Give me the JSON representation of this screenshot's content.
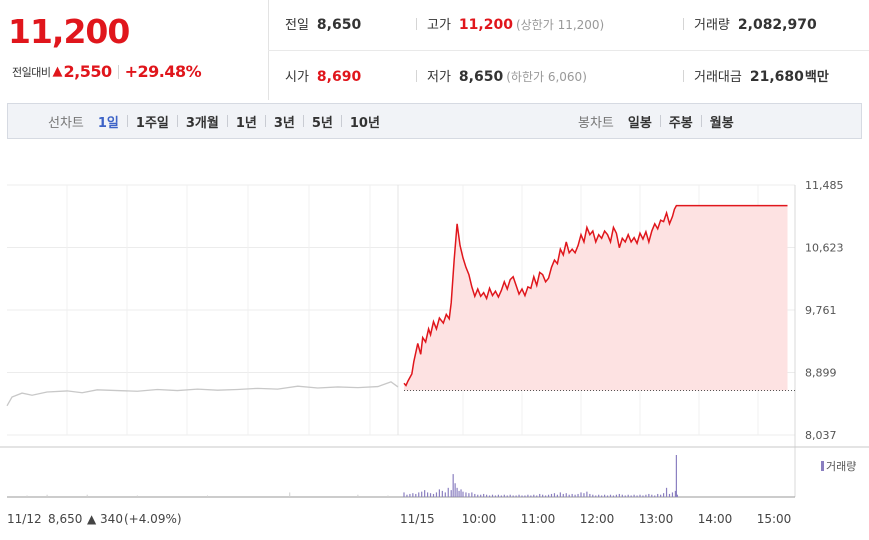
{
  "header": {
    "price": "11,200",
    "change_label": "전일대비",
    "change_value": "2,550",
    "change_pct": "+29.48%",
    "stats": {
      "prev_close": {
        "label": "전일",
        "value": "8,650"
      },
      "open": {
        "label": "시가",
        "value": "8,690"
      },
      "high": {
        "label": "고가",
        "value": "11,200",
        "extra": "(상한가 11,200)"
      },
      "low": {
        "label": "저가",
        "value": "8,650",
        "extra": "(하한가 6,060)"
      },
      "volume": {
        "label": "거래량",
        "value": "2,082,970"
      },
      "amount": {
        "label": "거래대금",
        "value": "21,680",
        "unit": "백만"
      }
    }
  },
  "tabs": {
    "line_label": "선차트",
    "line_periods": [
      "1일",
      "1주일",
      "3개월",
      "1년",
      "3년",
      "5년",
      "10년"
    ],
    "candle_label": "봉차트",
    "candle_periods": [
      "일봉",
      "주봉",
      "월봉"
    ],
    "active": "1일"
  },
  "colors": {
    "up": "#e0161c",
    "down": "#2a57c4",
    "active_tab": "#3d63c7",
    "volume": "#8a7fc0",
    "prev_line": "#c8c8c8",
    "fill": "#fde2e2"
  },
  "chart_data": {
    "type": "line",
    "ylim": [
      8037,
      11485
    ],
    "y_ticks": [
      "11,485",
      "10,623",
      "9,761",
      "8,899",
      "8,037"
    ],
    "x_ticks": [
      "11/15",
      "10:00",
      "11:00",
      "12:00",
      "13:00",
      "14:00",
      "15:00"
    ],
    "prev_day": {
      "date": "11/12",
      "close": "8,650",
      "change": "340",
      "change_pct": "(+4.09%)"
    },
    "reference_price": 8650,
    "volume_legend": "거래량",
    "series": [
      {
        "values": [
          [
            0,
            8440
          ],
          [
            5,
            8560
          ],
          [
            15,
            8615
          ],
          [
            25,
            8585
          ],
          [
            40,
            8630
          ],
          [
            60,
            8645
          ],
          [
            75,
            8620
          ],
          [
            90,
            8660
          ],
          [
            110,
            8650
          ],
          [
            130,
            8640
          ],
          [
            150,
            8665
          ],
          [
            170,
            8650
          ],
          [
            190,
            8670
          ],
          [
            210,
            8655
          ],
          [
            230,
            8665
          ],
          [
            250,
            8680
          ],
          [
            270,
            8670
          ],
          [
            290,
            8710
          ],
          [
            310,
            8685
          ],
          [
            330,
            8700
          ],
          [
            350,
            8690
          ],
          [
            370,
            8705
          ],
          [
            383,
            8770
          ],
          [
            390,
            8700
          ]
        ]
      },
      {
        "values": [
          [
            "09:00",
            8750
          ],
          [
            "09:02",
            8720
          ],
          [
            "09:04",
            8780
          ],
          [
            "09:08",
            8880
          ],
          [
            "09:10",
            9050
          ],
          [
            "09:14",
            9300
          ],
          [
            "09:17",
            9150
          ],
          [
            "09:19",
            9380
          ],
          [
            "09:22",
            9320
          ],
          [
            "09:25",
            9500
          ],
          [
            "09:27",
            9420
          ],
          [
            "09:30",
            9600
          ],
          [
            "09:33",
            9500
          ],
          [
            "09:36",
            9650
          ],
          [
            "09:40",
            9580
          ],
          [
            "09:43",
            9700
          ],
          [
            "09:46",
            9640
          ],
          [
            "09:48",
            9860
          ],
          [
            "09:51",
            10450
          ],
          [
            "09:54",
            10950
          ],
          [
            "09:57",
            10650
          ],
          [
            "10:00",
            10480
          ],
          [
            "10:03",
            10350
          ],
          [
            "10:06",
            10250
          ],
          [
            "10:09",
            10080
          ],
          [
            "10:12",
            9950
          ],
          [
            "10:15",
            10050
          ],
          [
            "10:18",
            9950
          ],
          [
            "10:21",
            10000
          ],
          [
            "10:24",
            9920
          ],
          [
            "10:27",
            10060
          ],
          [
            "10:30",
            9960
          ],
          [
            "10:33",
            10020
          ],
          [
            "10:36",
            9940
          ],
          [
            "10:39",
            10030
          ],
          [
            "10:42",
            10150
          ],
          [
            "10:45",
            10050
          ],
          [
            "10:48",
            10180
          ],
          [
            "10:51",
            10220
          ],
          [
            "10:54",
            10100
          ],
          [
            "10:57",
            9980
          ],
          [
            "11:00",
            10050
          ],
          [
            "11:03",
            9960
          ],
          [
            "11:06",
            10080
          ],
          [
            "11:09",
            10060
          ],
          [
            "11:12",
            10220
          ],
          [
            "11:15",
            10100
          ],
          [
            "11:18",
            10280
          ],
          [
            "11:21",
            10250
          ],
          [
            "11:24",
            10150
          ],
          [
            "11:27",
            10200
          ],
          [
            "11:30",
            10350
          ],
          [
            "11:33",
            10450
          ],
          [
            "11:36",
            10400
          ],
          [
            "11:39",
            10600
          ],
          [
            "11:42",
            10520
          ],
          [
            "11:45",
            10700
          ],
          [
            "11:48",
            10550
          ],
          [
            "11:51",
            10600
          ],
          [
            "11:54",
            10550
          ],
          [
            "11:57",
            10650
          ],
          [
            "12:00",
            10800
          ],
          [
            "12:03",
            10700
          ],
          [
            "12:06",
            10900
          ],
          [
            "12:09",
            10800
          ],
          [
            "12:12",
            10850
          ],
          [
            "12:15",
            10700
          ],
          [
            "12:18",
            10800
          ],
          [
            "12:21",
            10750
          ],
          [
            "12:24",
            10850
          ],
          [
            "12:27",
            10800
          ],
          [
            "12:30",
            10700
          ],
          [
            "12:33",
            10900
          ],
          [
            "12:36",
            10820
          ],
          [
            "12:39",
            10620
          ],
          [
            "12:42",
            10750
          ],
          [
            "12:45",
            10700
          ],
          [
            "12:48",
            10800
          ],
          [
            "12:51",
            10700
          ],
          [
            "12:54",
            10760
          ],
          [
            "12:57",
            10680
          ],
          [
            "13:00",
            10820
          ],
          [
            "13:03",
            10740
          ],
          [
            "13:06",
            10840
          ],
          [
            "13:09",
            10700
          ],
          [
            "13:12",
            10850
          ],
          [
            "13:15",
            10950
          ],
          [
            "13:18",
            10880
          ],
          [
            "13:21",
            11000
          ],
          [
            "13:24",
            10980
          ],
          [
            "13:27",
            11100
          ],
          [
            "13:30",
            10950
          ],
          [
            "13:33",
            11050
          ],
          [
            "13:35",
            11150
          ],
          [
            "13:37",
            11200
          ],
          [
            "15:30",
            11200
          ]
        ]
      }
    ],
    "volume": {
      "today": [
        [
          "09:00",
          6
        ],
        [
          "09:03",
          3
        ],
        [
          "09:06",
          4
        ],
        [
          "09:09",
          5
        ],
        [
          "09:12",
          4
        ],
        [
          "09:15",
          6
        ],
        [
          "09:18",
          7
        ],
        [
          "09:21",
          9
        ],
        [
          "09:24",
          6
        ],
        [
          "09:27",
          5
        ],
        [
          "09:30",
          4
        ],
        [
          "09:33",
          6
        ],
        [
          "09:36",
          10
        ],
        [
          "09:39",
          8
        ],
        [
          "09:42",
          6
        ],
        [
          "09:45",
          12
        ],
        [
          "09:48",
          9
        ],
        [
          "09:50",
          30
        ],
        [
          "09:52",
          18
        ],
        [
          "09:54",
          12
        ],
        [
          "09:56",
          8
        ],
        [
          "09:58",
          10
        ],
        [
          "10:00",
          7
        ],
        [
          "10:03",
          6
        ],
        [
          "10:06",
          5
        ],
        [
          "10:09",
          6
        ],
        [
          "10:12",
          4
        ],
        [
          "10:15",
          3
        ],
        [
          "10:18",
          3
        ],
        [
          "10:21",
          4
        ],
        [
          "10:24",
          3
        ],
        [
          "10:27",
          2
        ],
        [
          "10:30",
          3
        ],
        [
          "10:33",
          2
        ],
        [
          "10:36",
          3
        ],
        [
          "10:39",
          2
        ],
        [
          "10:42",
          3
        ],
        [
          "10:45",
          2
        ],
        [
          "10:48",
          3
        ],
        [
          "10:51",
          2
        ],
        [
          "10:54",
          2
        ],
        [
          "10:57",
          3
        ],
        [
          "11:00",
          2
        ],
        [
          "11:03",
          2
        ],
        [
          "11:06",
          3
        ],
        [
          "11:09",
          2
        ],
        [
          "11:12",
          3
        ],
        [
          "11:15",
          2
        ],
        [
          "11:18",
          4
        ],
        [
          "11:21",
          3
        ],
        [
          "11:24",
          2
        ],
        [
          "11:27",
          3
        ],
        [
          "11:30",
          4
        ],
        [
          "11:33",
          5
        ],
        [
          "11:36",
          3
        ],
        [
          "11:39",
          6
        ],
        [
          "11:42",
          4
        ],
        [
          "11:45",
          5
        ],
        [
          "11:48",
          3
        ],
        [
          "11:51",
          4
        ],
        [
          "11:54",
          3
        ],
        [
          "11:57",
          4
        ],
        [
          "12:00",
          6
        ],
        [
          "12:03",
          5
        ],
        [
          "12:06",
          7
        ],
        [
          "12:09",
          4
        ],
        [
          "12:12",
          3
        ],
        [
          "12:15",
          2
        ],
        [
          "12:18",
          3
        ],
        [
          "12:21",
          2
        ],
        [
          "12:24",
          3
        ],
        [
          "12:27",
          2
        ],
        [
          "12:30",
          3
        ],
        [
          "12:33",
          2
        ],
        [
          "12:36",
          3
        ],
        [
          "12:39",
          4
        ],
        [
          "12:42",
          3
        ],
        [
          "12:45",
          2
        ],
        [
          "12:48",
          3
        ],
        [
          "12:51",
          2
        ],
        [
          "12:54",
          3
        ],
        [
          "12:57",
          2
        ],
        [
          "13:00",
          3
        ],
        [
          "13:03",
          2
        ],
        [
          "13:06",
          3
        ],
        [
          "13:09",
          4
        ],
        [
          "13:12",
          3
        ],
        [
          "13:15",
          2
        ],
        [
          "13:18",
          4
        ],
        [
          "13:21",
          3
        ],
        [
          "13:24",
          5
        ],
        [
          "13:27",
          12
        ],
        [
          "13:30",
          4
        ],
        [
          "13:33",
          6
        ],
        [
          "13:36",
          8
        ],
        [
          "13:37",
          55
        ],
        [
          "13:38",
          3
        ]
      ],
      "prev_day": [
        [
          20,
          2
        ],
        [
          40,
          3
        ],
        [
          80,
          3
        ],
        [
          130,
          2
        ],
        [
          200,
          2
        ],
        [
          282,
          6
        ],
        [
          350,
          3
        ],
        [
          380,
          2
        ]
      ]
    }
  }
}
